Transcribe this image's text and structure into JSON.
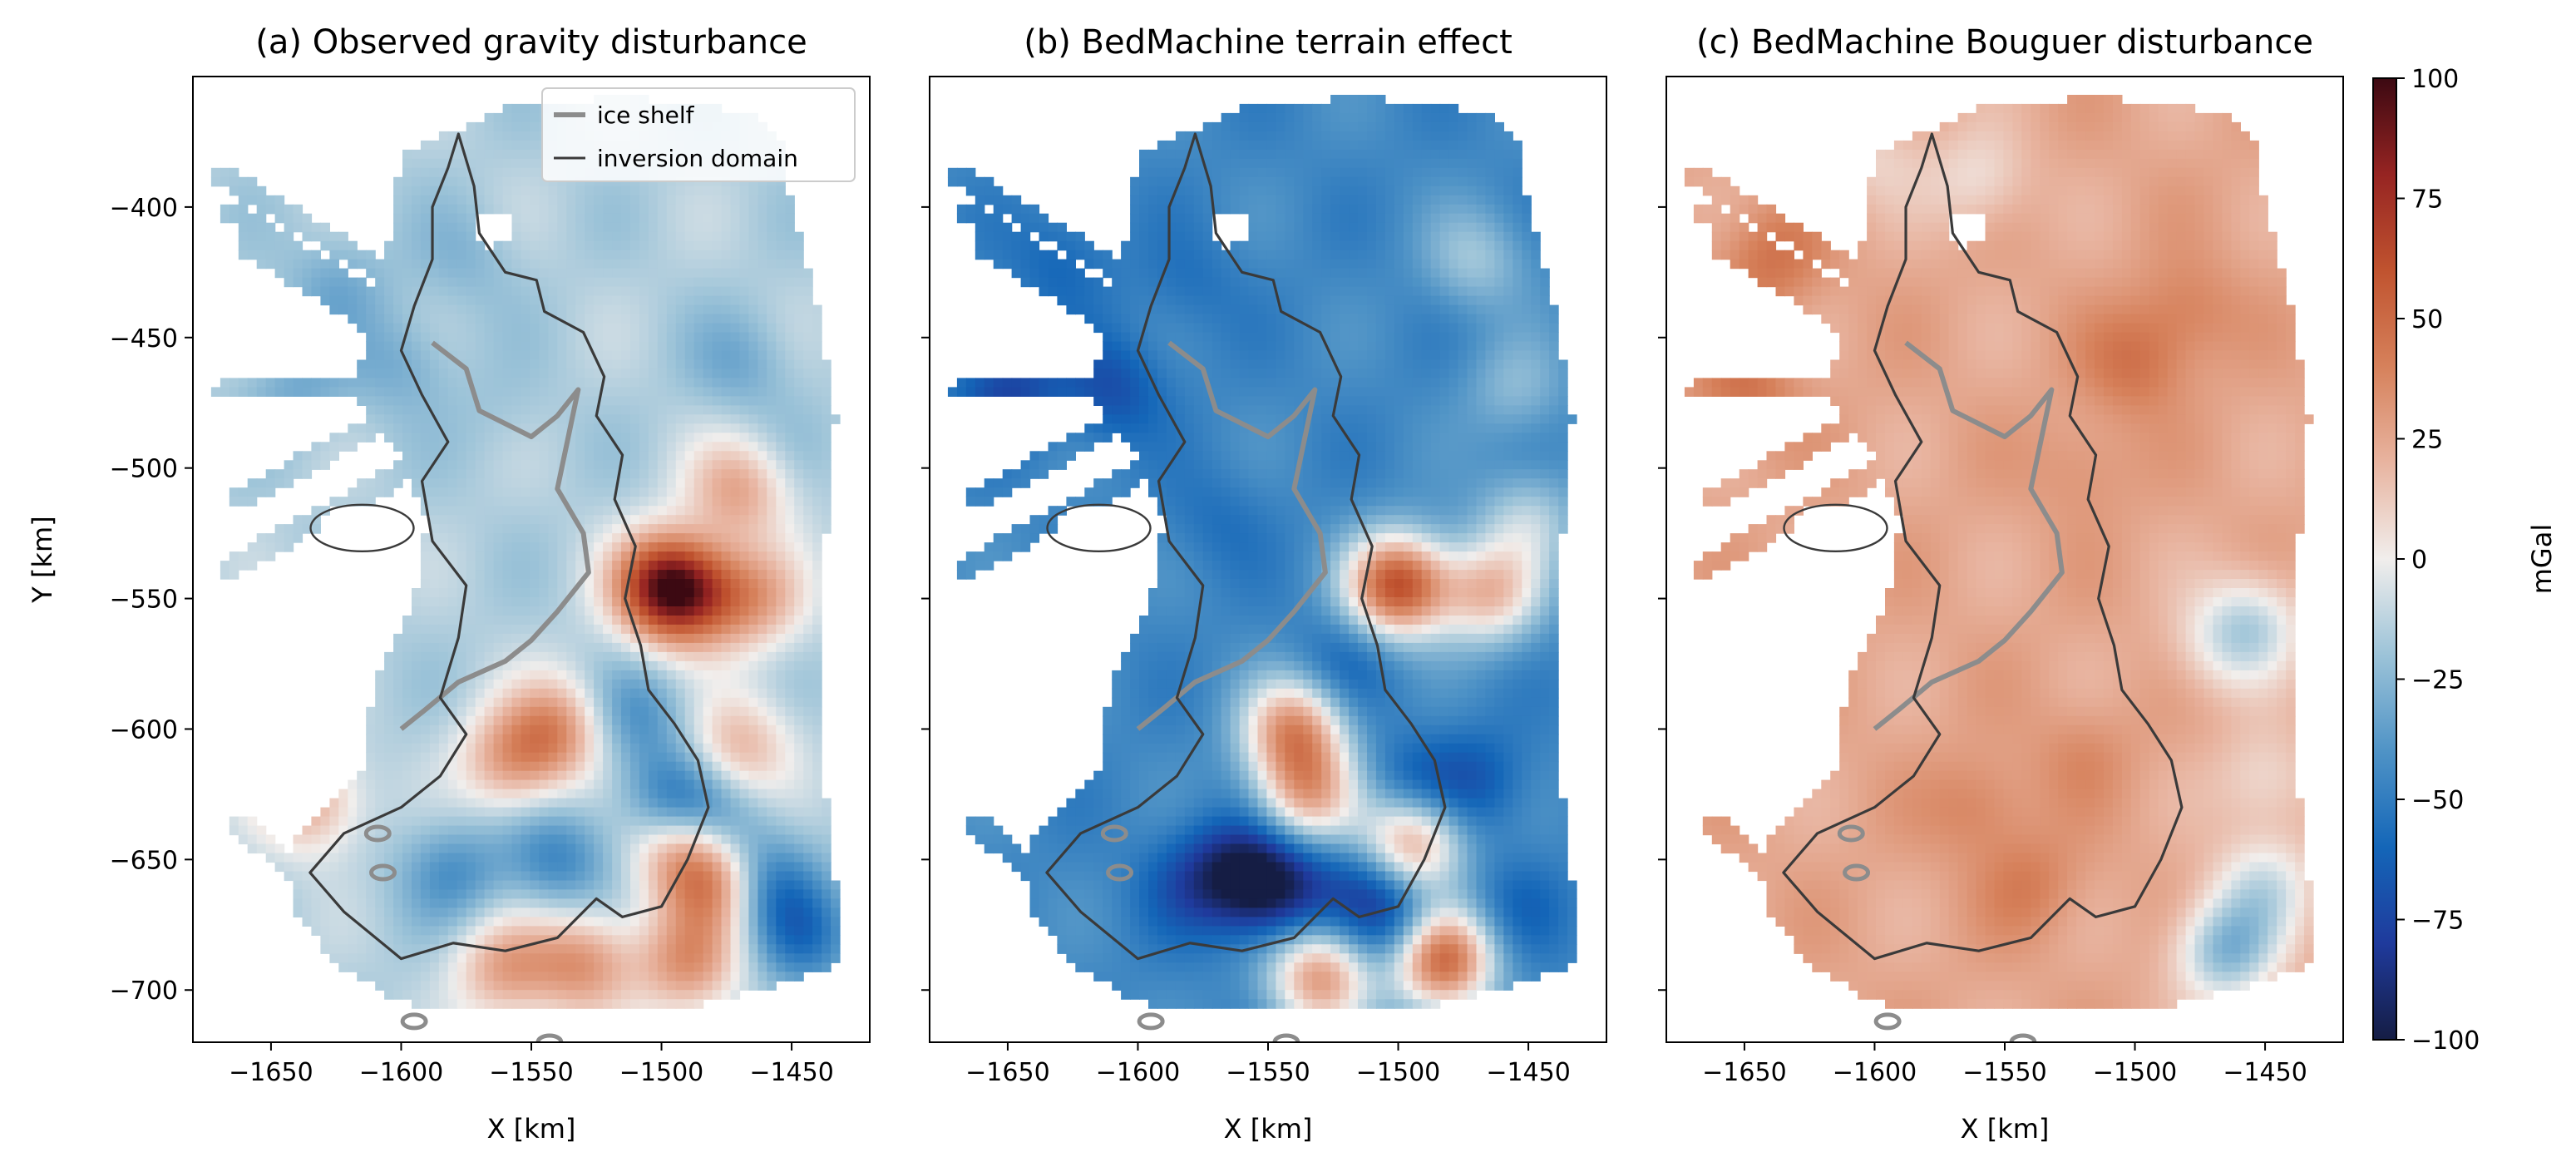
{
  "figure": {
    "colorbar": {
      "label": "mGal",
      "ticks": [
        100,
        75,
        50,
        25,
        0,
        -25,
        -50,
        -75,
        -100
      ],
      "tick_labels": [
        "100",
        "75",
        "50",
        "25",
        "0",
        "−25",
        "−50",
        "−75",
        "−100"
      ],
      "range": [
        -100,
        100
      ],
      "colormap": "balance (blue-white-red)",
      "stops": [
        "#151d44",
        "#1f3a9c",
        "#1466b8",
        "#4f93c6",
        "#9cc3d8",
        "#f1eeec",
        "#e8b4a0",
        "#d6815b",
        "#c0532f",
        "#962422",
        "#3c0912"
      ]
    },
    "legend": {
      "placement": "top-right of panel (a)",
      "entries": [
        {
          "label": "ice shelf",
          "color": "#8c8c8c"
        },
        {
          "label": "inversion domain",
          "color": "#3a3a3a"
        }
      ]
    }
  },
  "chart_data": [
    {
      "type": "heatmap",
      "title": "(a) Observed gravity disturbance",
      "xlabel": "X [km]",
      "ylabel": "Y [km]",
      "xlim": [
        -1680,
        -1420
      ],
      "ylim": [
        -720,
        -350
      ],
      "xticks": [
        -1650,
        -1600,
        -1550,
        -1500,
        -1450
      ],
      "xtick_labels": [
        "−1650",
        "−1600",
        "−1550",
        "−1500",
        "−1450"
      ],
      "yticks": [
        -400,
        -450,
        -500,
        -550,
        -600,
        -650,
        -700
      ],
      "ytick_labels": [
        "−400",
        "−450",
        "−500",
        "−550",
        "−600",
        "−650",
        "−700"
      ],
      "value_range": [
        -100,
        100
      ],
      "mean_value": -15,
      "blobs": [
        {
          "x": -1540,
          "y": -600,
          "value": 30
        },
        {
          "x": -1558,
          "y": -612,
          "value": 25
        },
        {
          "x": -1500,
          "y": -545,
          "value": 55
        },
        {
          "x": -1490,
          "y": -548,
          "value": 45
        },
        {
          "x": -1465,
          "y": -550,
          "value": 25
        },
        {
          "x": -1470,
          "y": -508,
          "value": 25
        },
        {
          "x": -1490,
          "y": -645,
          "value": 45
        },
        {
          "x": -1478,
          "y": -660,
          "value": 35
        },
        {
          "x": -1530,
          "y": -690,
          "value": 30
        },
        {
          "x": -1560,
          "y": -692,
          "value": 25
        },
        {
          "x": -1490,
          "y": -690,
          "value": 30
        },
        {
          "x": -1635,
          "y": -628,
          "value": 25
        },
        {
          "x": -1470,
          "y": -607,
          "value": 20
        },
        {
          "x": -1495,
          "y": -628,
          "value": -55
        },
        {
          "x": -1480,
          "y": -640,
          "value": -50
        },
        {
          "x": -1460,
          "y": -660,
          "value": -55
        },
        {
          "x": -1445,
          "y": -680,
          "value": -50
        },
        {
          "x": -1540,
          "y": -650,
          "value": -45
        },
        {
          "x": -1580,
          "y": -655,
          "value": -40
        },
        {
          "x": -1510,
          "y": -595,
          "value": -40
        },
        {
          "x": -1600,
          "y": -460,
          "value": -30
        },
        {
          "x": -1625,
          "y": -430,
          "value": -30
        },
        {
          "x": -1575,
          "y": -420,
          "value": -25
        },
        {
          "x": -1640,
          "y": -470,
          "value": -30
        },
        {
          "x": -1560,
          "y": -480,
          "value": -20
        },
        {
          "x": -1520,
          "y": -470,
          "value": -15
        },
        {
          "x": -1470,
          "y": -460,
          "value": -30
        },
        {
          "x": -1455,
          "y": -495,
          "value": -20
        }
      ]
    },
    {
      "type": "heatmap",
      "title": "(b) BedMachine terrain effect",
      "xlabel": "X [km]",
      "xlim": [
        -1680,
        -1420
      ],
      "ylim": [
        -720,
        -350
      ],
      "xticks": [
        -1650,
        -1600,
        -1550,
        -1500,
        -1450
      ],
      "xtick_labels": [
        "−1650",
        "−1600",
        "−1550",
        "−1500",
        "−1450"
      ],
      "yticks": [
        -400,
        -450,
        -500,
        -550,
        -600,
        -650,
        -700
      ],
      "value_range": [
        -100,
        100
      ],
      "mean_value": -45,
      "blobs": [
        {
          "x": -1560,
          "y": -655,
          "value": -90
        },
        {
          "x": -1545,
          "y": -662,
          "value": -85
        },
        {
          "x": -1580,
          "y": -660,
          "value": -65
        },
        {
          "x": -1510,
          "y": -660,
          "value": -70
        },
        {
          "x": -1500,
          "y": -675,
          "value": -75
        },
        {
          "x": -1495,
          "y": -625,
          "value": -70
        },
        {
          "x": -1470,
          "y": -620,
          "value": -65
        },
        {
          "x": -1455,
          "y": -670,
          "value": -60
        },
        {
          "x": -1610,
          "y": -470,
          "value": -70
        },
        {
          "x": -1650,
          "y": -470,
          "value": -75
        },
        {
          "x": -1630,
          "y": -420,
          "value": -60
        },
        {
          "x": -1580,
          "y": -430,
          "value": -55
        },
        {
          "x": -1520,
          "y": -575,
          "value": -60
        },
        {
          "x": -1570,
          "y": -520,
          "value": -55
        },
        {
          "x": -1540,
          "y": -600,
          "value": 30
        },
        {
          "x": -1535,
          "y": -625,
          "value": 20
        },
        {
          "x": -1500,
          "y": -545,
          "value": 60
        },
        {
          "x": -1495,
          "y": -643,
          "value": 35
        },
        {
          "x": -1483,
          "y": -688,
          "value": 55
        },
        {
          "x": -1530,
          "y": -695,
          "value": 30
        },
        {
          "x": -1465,
          "y": -548,
          "value": 15
        },
        {
          "x": -1470,
          "y": -420,
          "value": -20
        },
        {
          "x": -1455,
          "y": -470,
          "value": -25
        },
        {
          "x": -1450,
          "y": -520,
          "value": -15
        }
      ]
    },
    {
      "type": "heatmap",
      "title": "(c) BedMachine Bouguer disturbance",
      "xlabel": "X [km]",
      "xlim": [
        -1680,
        -1420
      ],
      "ylim": [
        -720,
        -350
      ],
      "xticks": [
        -1650,
        -1600,
        -1550,
        -1500,
        -1450
      ],
      "xtick_labels": [
        "−1650",
        "−1600",
        "−1550",
        "−1500",
        "−1450"
      ],
      "yticks": [
        -400,
        -450,
        -500,
        -550,
        -600,
        -650,
        -700
      ],
      "value_range": [
        -100,
        100
      ],
      "mean_value": 25,
      "blobs": [
        {
          "x": -1500,
          "y": -460,
          "value": 45
        },
        {
          "x": -1480,
          "y": -440,
          "value": 40
        },
        {
          "x": -1520,
          "y": -500,
          "value": 35
        },
        {
          "x": -1640,
          "y": -420,
          "value": 45
        },
        {
          "x": -1650,
          "y": -470,
          "value": 45
        },
        {
          "x": -1560,
          "y": -630,
          "value": 40
        },
        {
          "x": -1540,
          "y": -660,
          "value": 40
        },
        {
          "x": -1520,
          "y": -610,
          "value": 35
        },
        {
          "x": -1600,
          "y": -380,
          "value": 10
        },
        {
          "x": -1560,
          "y": -390,
          "value": 5
        },
        {
          "x": -1470,
          "y": -570,
          "value": 10
        },
        {
          "x": -1450,
          "y": -620,
          "value": 5
        },
        {
          "x": -1450,
          "y": -660,
          "value": -5
        },
        {
          "x": -1465,
          "y": -685,
          "value": -25
        },
        {
          "x": -1455,
          "y": -560,
          "value": -10
        }
      ]
    }
  ]
}
